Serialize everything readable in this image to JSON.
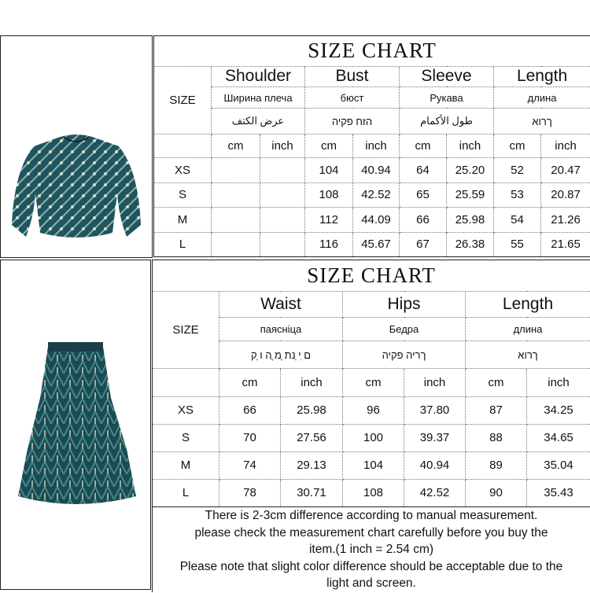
{
  "top": {
    "title": "SIZE CHART",
    "size_label": "SIZE",
    "columns": [
      {
        "en": "Shoulder",
        "ru": "Ширина плеча",
        "alt": "عرض الكتف"
      },
      {
        "en": "Bust",
        "ru": "бюст",
        "alt": "הזח פקיה"
      },
      {
        "en": "Sleeve",
        "ru": "Рукава",
        "alt": "طول الأكمام"
      },
      {
        "en": "Length",
        "ru": "длина",
        "alt": "ךרוא"
      }
    ],
    "unit_cm": "cm",
    "unit_inch": "inch",
    "rows": [
      {
        "size": "XS",
        "v": [
          "",
          "",
          "104",
          "40.94",
          "64",
          "25.20",
          "52",
          "20.47"
        ]
      },
      {
        "size": "S",
        "v": [
          "",
          "",
          "108",
          "42.52",
          "65",
          "25.59",
          "53",
          "20.87"
        ]
      },
      {
        "size": "M",
        "v": [
          "",
          "",
          "112",
          "44.09",
          "66",
          "25.98",
          "54",
          "21.26"
        ]
      },
      {
        "size": "L",
        "v": [
          "",
          "",
          "116",
          "45.67",
          "67",
          "26.38",
          "55",
          "21.65"
        ]
      }
    ]
  },
  "bottom": {
    "title": "SIZE CHART",
    "size_label": "SIZE",
    "columns": [
      {
        "en": "Waist",
        "ru": "паясніца",
        "alt": "ם ִי ַנת ָמ ֲה ו ַק"
      },
      {
        "en": "Hips",
        "ru": "Бедра",
        "alt": "ךריה פקיה"
      },
      {
        "en": "Length",
        "ru": "длина",
        "alt": "ךרוא"
      }
    ],
    "unit_cm": "cm",
    "unit_inch": "inch",
    "rows": [
      {
        "size": "XS",
        "v": [
          "66",
          "25.98",
          "96",
          "37.80",
          "87",
          "34.25"
        ]
      },
      {
        "size": "S",
        "v": [
          "70",
          "27.56",
          "100",
          "39.37",
          "88",
          "34.65"
        ]
      },
      {
        "size": "M",
        "v": [
          "74",
          "29.13",
          "104",
          "40.94",
          "89",
          "35.04"
        ]
      },
      {
        "size": "L",
        "v": [
          "78",
          "30.71",
          "108",
          "42.52",
          "90",
          "35.43"
        ]
      }
    ],
    "note_lines": [
      "There is 2-3cm difference according to manual measurement.",
      "please check the measurement chart carefully before you buy the",
      "item.(1 inch = 2.54 cm)",
      "Please note that slight color difference should be acceptable due to the",
      "light and screen."
    ]
  },
  "colors": {
    "fabric_dark": "#1d4a52",
    "fabric_teal": "#2f7a80",
    "fabric_light": "#b9c9b8"
  }
}
